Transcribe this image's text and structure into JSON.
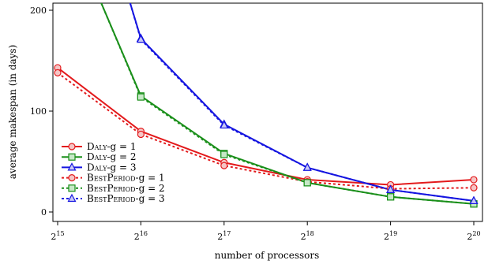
{
  "chart_data": {
    "type": "line",
    "xlabel": "number of processors",
    "ylabel": "average makespan (in days)",
    "x_scale": "log2",
    "x": [
      32768,
      65536,
      131072,
      262144,
      524288,
      1048576
    ],
    "x_tick_labels": [
      {
        "base": "2",
        "exp": "15"
      },
      {
        "base": "2",
        "exp": "16"
      },
      {
        "base": "2",
        "exp": "17"
      },
      {
        "base": "2",
        "exp": "18"
      },
      {
        "base": "2",
        "exp": "19"
      },
      {
        "base": "2",
        "exp": "20"
      }
    ],
    "y_ticks": [
      "0",
      "100",
      "200"
    ],
    "ylim": [
      0,
      200
    ],
    "legend_position": "lower-left",
    "series": [
      {
        "name": "Daly-g = 1",
        "label_main": "Daly",
        "label_suffix": "-g = 1",
        "color": "#e31a1c",
        "dash": "solid",
        "marker": "circle",
        "values": [
          143,
          80,
          49,
          32,
          27,
          32
        ]
      },
      {
        "name": "Daly-g = 2",
        "label_main": "Daly",
        "label_suffix": "-g = 2",
        "color": "#1a8f1a",
        "dash": "solid",
        "marker": "square",
        "values": [
          null,
          115,
          58,
          29,
          15,
          8
        ]
      },
      {
        "name": "Daly-g = 3",
        "label_main": "Daly",
        "label_suffix": "-g = 3",
        "color": "#1515e0",
        "dash": "solid",
        "marker": "triangle",
        "values": [
          null,
          172,
          87,
          44,
          22,
          11
        ]
      },
      {
        "name": "BestPeriod-g = 1",
        "label_main": "BestPeriod",
        "label_suffix": "-g = 1",
        "color": "#e31a1c",
        "dash": "dotted",
        "marker": "circle",
        "values": [
          138,
          77,
          46,
          30,
          23,
          24
        ]
      },
      {
        "name": "BestPeriod-g = 2",
        "label_main": "BestPeriod",
        "label_suffix": "-g = 2",
        "color": "#1a8f1a",
        "dash": "dotted",
        "marker": "square",
        "values": [
          null,
          114,
          57,
          29,
          15,
          8
        ]
      },
      {
        "name": "BestPeriod-g = 3",
        "label_main": "BestPeriod",
        "label_suffix": "-g = 3",
        "color": "#1515e0",
        "dash": "dotted",
        "marker": "triangle",
        "values": [
          null,
          171,
          86,
          44,
          22,
          11
        ]
      }
    ]
  }
}
